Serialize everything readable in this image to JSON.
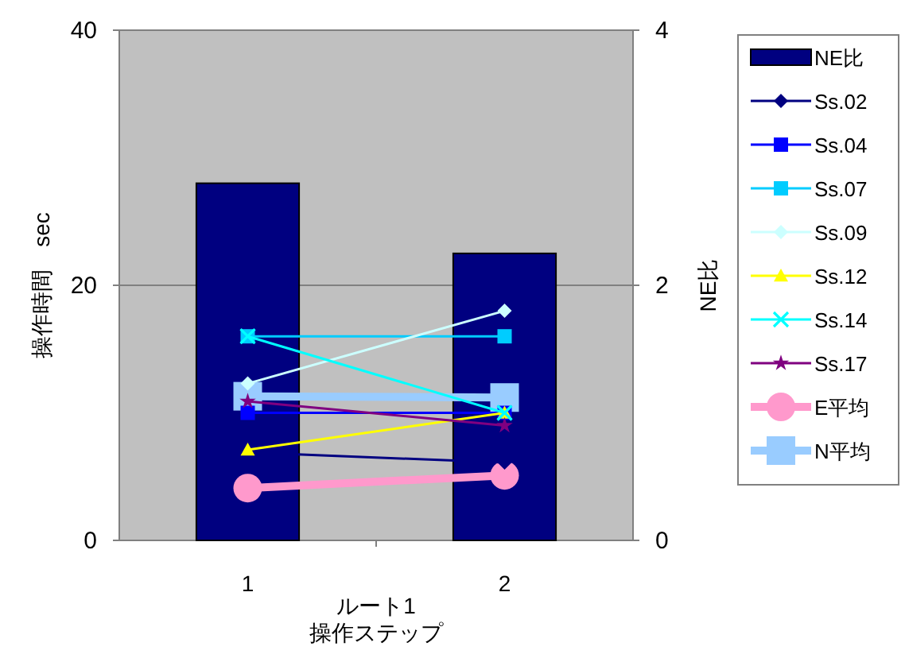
{
  "chart_data": {
    "type": "line",
    "xlabel": "ルート1\n操作ステップ",
    "ylabel": "操作時間　sec",
    "y2label": "NE比",
    "categories": [
      "1",
      "2"
    ],
    "ylim": [
      0,
      40
    ],
    "yticks": [
      0,
      20,
      40
    ],
    "y2lim": [
      0,
      4
    ],
    "y2ticks": [
      0,
      2,
      4
    ],
    "grid": "y",
    "legend": "right",
    "series": [
      {
        "name": "NE比",
        "type": "bar",
        "axis": "y2",
        "color": "#000080",
        "values": [
          2.8,
          2.25
        ]
      },
      {
        "name": "Ss.02",
        "color": "#000080",
        "marker": "diamond",
        "values": [
          6.9,
          6.1
        ]
      },
      {
        "name": "Ss.04",
        "color": "#0000ff",
        "marker": "square",
        "values": [
          10,
          10
        ]
      },
      {
        "name": "Ss.07",
        "color": "#00ccff",
        "marker": "square",
        "values": [
          16,
          16
        ]
      },
      {
        "name": "Ss.09",
        "color": "#ccffff",
        "marker": "diamond",
        "values": [
          12.3,
          18
        ]
      },
      {
        "name": "Ss.12",
        "color": "#ffff00",
        "marker": "triangle",
        "values": [
          7.1,
          10
        ]
      },
      {
        "name": "Ss.14",
        "color": "#00ffff",
        "marker": "cross",
        "values": [
          16,
          10
        ]
      },
      {
        "name": "Ss.17",
        "color": "#800080",
        "marker": "star",
        "values": [
          10.9,
          9
        ]
      },
      {
        "name": "E平均",
        "color": "#ff99cc",
        "marker": "circle",
        "values": [
          4.1,
          5.1
        ]
      },
      {
        "name": "N平均",
        "color": "#99ccff",
        "marker": "square",
        "values": [
          11.3,
          11.2
        ]
      }
    ]
  }
}
